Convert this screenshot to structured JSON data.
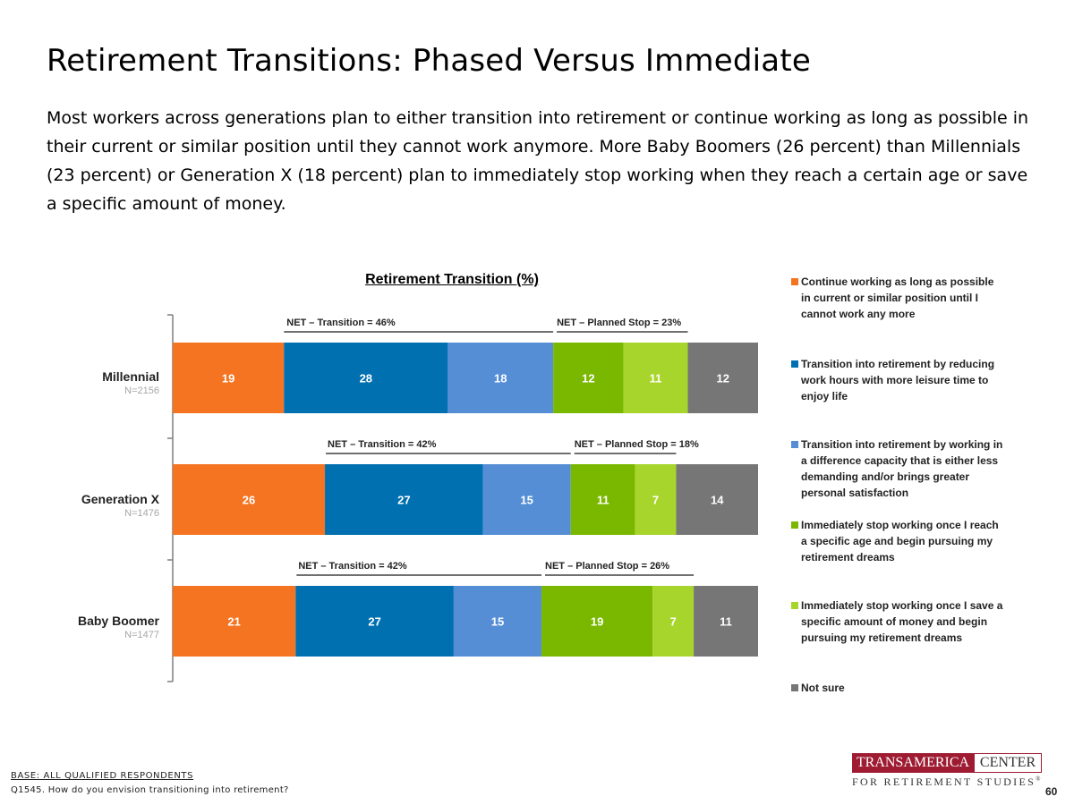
{
  "page": {
    "title": "Retirement Transitions: Phased Versus Immediate",
    "subtitle": "Most workers across generations plan to either transition into retirement or continue working as long as possible in their current or similar position until they cannot work anymore. More Baby Boomers (26 percent) than Millennials (23 percent) or Generation X (18 percent) plan to immediately stop working when they reach a certain age or save a specific amount of money.",
    "base_note": "BASE: ALL QUALIFIED RESPONDENTS",
    "question_note": "Q1545. How do you envision transitioning into retirement?",
    "page_number": "60"
  },
  "logo": {
    "name_part1": "TRANSAMERICA",
    "name_part2": "CENTER",
    "tagline": "FOR RETIREMENT STUDIES",
    "mark": "®"
  },
  "chart_data": {
    "type": "bar",
    "orientation": "horizontal",
    "stacked": true,
    "title": "Retirement Transition (%)",
    "categories": [
      "Millennial",
      "Generation X",
      "Baby Boomer"
    ],
    "sample_sizes": [
      "N=2156",
      "N=1476",
      "N=1477"
    ],
    "series": [
      {
        "name": "Continue working as long as possible in current or similar position until I cannot work any more",
        "color": "#f47421",
        "values": [
          19,
          26,
          21
        ]
      },
      {
        "name": "Transition into retirement by reducing work hours with more leisure time to enjoy life",
        "color": "#0070b0",
        "values": [
          28,
          27,
          27
        ]
      },
      {
        "name": "Transition into retirement by working in a difference capacity that is either less demanding and/or brings greater personal satisfaction",
        "color": "#558ed5",
        "values": [
          18,
          15,
          15
        ]
      },
      {
        "name": "Immediately stop working once I reach a specific age and begin pursuing my retirement dreams",
        "color": "#7ab800",
        "values": [
          12,
          11,
          19
        ]
      },
      {
        "name": "Immediately stop working once I save a specific amount of money and begin pursuing my retirement dreams",
        "color": "#a8d52c",
        "values": [
          11,
          7,
          7
        ]
      },
      {
        "name": "Not sure",
        "color": "#767676",
        "values": [
          12,
          14,
          11
        ]
      }
    ],
    "net_annotations": [
      {
        "transition": "NET – Transition = 46%",
        "planned_stop": "NET – Planned Stop = 23%"
      },
      {
        "transition": "NET – Transition = 42%",
        "planned_stop": "NET – Planned Stop = 18%"
      },
      {
        "transition": "NET – Transition = 42%",
        "planned_stop": "NET – Planned Stop = 26%"
      }
    ],
    "legend_position": "right",
    "grid": false
  }
}
